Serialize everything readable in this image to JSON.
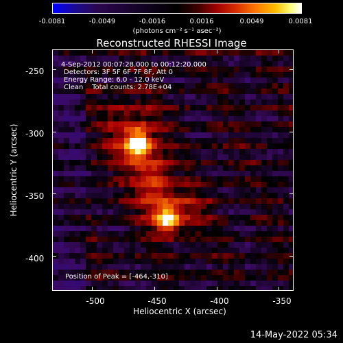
{
  "colorbar": {
    "ticks": [
      "-0.0081",
      "-0.0049",
      "-0.0016",
      "0.0016",
      "0.0049",
      "0.0081"
    ],
    "units": "(photons cm⁻² s⁻¹ asec⁻²)"
  },
  "title": "Reconstructed RHESSI Image",
  "info": {
    "time_range": "4-Sep-2012 00:07:28.000 to 00:12:20.000",
    "detectors": "Detectors: 3F 5F 6F 7F 8F, Att 0",
    "energy": "Energy Range: 6.0 - 12.0 keV",
    "clean": "Clean    Total counts: 2.78E+04",
    "peak": "Position of Peak = [-464,-310]"
  },
  "axes": {
    "xlabel": "Heliocentric X (arcsec)",
    "ylabel": "Heliocentric Y (arcsec)",
    "xticks": [
      "-500",
      "-450",
      "-400",
      "-350"
    ],
    "yticks": [
      "-250",
      "-300",
      "-350",
      "-400"
    ],
    "xrange": [
      -532,
      -338
    ],
    "yrange": [
      -234,
      -428
    ],
    "xtick_values": [
      -500,
      -450,
      -400,
      -350
    ],
    "ytick_values": [
      -250,
      -300,
      -350,
      -400
    ]
  },
  "image_sources": [
    {
      "x": -464,
      "y": -310,
      "peak": 1.0
    },
    {
      "x": -440,
      "y": -372,
      "peak": 0.9
    }
  ],
  "timestamp": "14-May-2022 05:34"
}
